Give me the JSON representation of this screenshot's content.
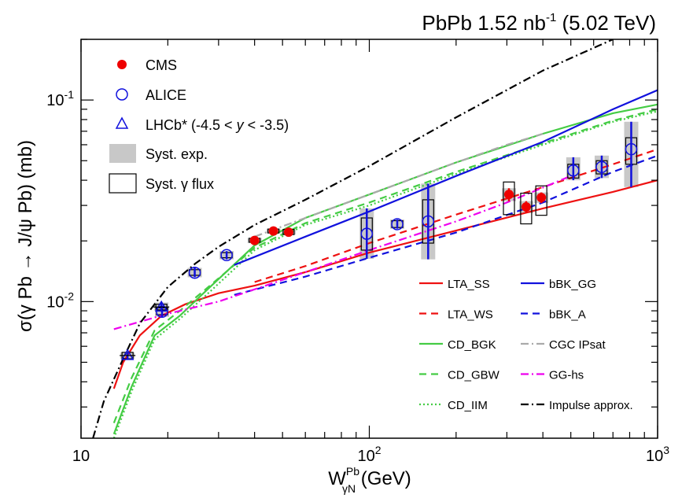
{
  "chart_data": {
    "type": "scatter",
    "title": "PbPb 1.52 nb",
    "title_sup": "-1",
    "title_suffix": " (5.02 TeV)",
    "xlabel_main": "W",
    "xlabel_sup": "Pb",
    "xlabel_sub": "γN",
    "xlabel_unit": " (GeV)",
    "ylabel": "σ(γ Pb → J/ψ Pb) (mb)",
    "x_scale": "log",
    "y_scale": "log",
    "xlim": [
      10,
      1000
    ],
    "ylim": [
      0.0021,
      0.2
    ],
    "x_ticks": [
      {
        "value": 10,
        "label": "10",
        "sup": ""
      },
      {
        "value": 100,
        "label": "10",
        "sup": "2"
      },
      {
        "value": 1000,
        "label": "10",
        "sup": "3"
      }
    ],
    "y_ticks": [
      {
        "value": 0.01,
        "label": "10",
        "sup": "-2"
      },
      {
        "value": 0.1,
        "label": "10",
        "sup": "-1"
      }
    ],
    "data_legend": {
      "cms": "CMS",
      "alice": "ALICE",
      "lhcb_prefix": "LHCb* (-4.5 < ",
      "lhcb_var": "y",
      "lhcb_suffix": " < -3.5)",
      "syst_exp": "Syst. exp.",
      "syst_flux": "Syst. γ flux"
    },
    "data_series": [
      {
        "name": "CMS",
        "marker": "filled-circle",
        "color": "#ee0000",
        "points": [
          {
            "x": 40,
            "y": 0.0201,
            "lo": 0.0195,
            "hi": 0.0207,
            "flux_lo": 0.0197,
            "flux_hi": 0.0206
          },
          {
            "x": 46.5,
            "y": 0.0224,
            "lo": 0.0218,
            "hi": 0.023,
            "flux_lo": 0.0219,
            "flux_hi": 0.0229
          },
          {
            "x": 52.5,
            "y": 0.0221,
            "lo": 0.0215,
            "hi": 0.0227,
            "flux_lo": 0.0215,
            "flux_hi": 0.0228
          },
          {
            "x": 305,
            "y": 0.034,
            "lo": 0.0315,
            "hi": 0.0365,
            "flux_lo": 0.027,
            "flux_hi": 0.0392
          },
          {
            "x": 350,
            "y": 0.0295,
            "lo": 0.0275,
            "hi": 0.0315,
            "flux_lo": 0.0243,
            "flux_hi": 0.0345
          },
          {
            "x": 395,
            "y": 0.0328,
            "lo": 0.0308,
            "hi": 0.0348,
            "flux_lo": 0.0268,
            "flux_hi": 0.0375
          }
        ]
      },
      {
        "name": "ALICE",
        "marker": "open-circle",
        "color": "#1010dd",
        "points": [
          {
            "x": 19.1,
            "y": 0.0089,
            "lo": 0.0084,
            "hi": 0.0095,
            "flux_lo": 0.0086,
            "flux_hi": 0.0093
          },
          {
            "x": 24.8,
            "y": 0.0139,
            "lo": 0.0132,
            "hi": 0.0147,
            "flux_lo": 0.0135,
            "flux_hi": 0.0144
          },
          {
            "x": 32,
            "y": 0.017,
            "lo": 0.0162,
            "hi": 0.0178,
            "flux_lo": 0.0165,
            "flux_hi": 0.0175
          },
          {
            "x": 98,
            "y": 0.0217,
            "lo": 0.0163,
            "hi": 0.029,
            "flux_lo": 0.018,
            "flux_hi": 0.026
          },
          {
            "x": 125,
            "y": 0.0242,
            "lo": 0.023,
            "hi": 0.0255,
            "flux_lo": 0.0233,
            "flux_hi": 0.0252
          },
          {
            "x": 160,
            "y": 0.025,
            "lo": 0.0162,
            "hi": 0.0385,
            "flux_lo": 0.0195,
            "flux_hi": 0.032
          },
          {
            "x": 510,
            "y": 0.0447,
            "lo": 0.04,
            "hi": 0.052,
            "flux_lo": 0.041,
            "flux_hi": 0.048
          },
          {
            "x": 640,
            "y": 0.0465,
            "lo": 0.041,
            "hi": 0.053,
            "flux_lo": 0.043,
            "flux_hi": 0.05
          },
          {
            "x": 810,
            "y": 0.057,
            "lo": 0.037,
            "hi": 0.078,
            "flux_lo": 0.048,
            "flux_hi": 0.065
          }
        ]
      },
      {
        "name": "LHCb*",
        "marker": "open-triangle",
        "color": "#1010dd",
        "points": [
          {
            "x": 14.5,
            "y": 0.0054,
            "lo": 0.0052,
            "hi": 0.0056,
            "flux_lo": 0.0052,
            "flux_hi": 0.0056
          },
          {
            "x": 19,
            "y": 0.0094,
            "lo": 0.009,
            "hi": 0.0099,
            "flux_lo": 0.0091,
            "flux_hi": 0.0097
          }
        ]
      }
    ],
    "model_series": [
      {
        "name": "LTA_SS",
        "color": "#ee1111",
        "style": "solid",
        "points": [
          [
            13,
            0.0037
          ],
          [
            14,
            0.005
          ],
          [
            16,
            0.0068
          ],
          [
            19,
            0.0085
          ],
          [
            23,
            0.0097
          ],
          [
            30,
            0.011
          ],
          [
            40,
            0.012
          ],
          [
            60,
            0.014
          ],
          [
            100,
            0.0175
          ],
          [
            200,
            0.0225
          ],
          [
            400,
            0.029
          ],
          [
            700,
            0.035
          ],
          [
            1000,
            0.04
          ]
        ]
      },
      {
        "name": "LTA_WS",
        "color": "#ee1111",
        "style": "dashed",
        "points": [
          [
            40,
            0.0125
          ],
          [
            60,
            0.015
          ],
          [
            100,
            0.0195
          ],
          [
            200,
            0.027
          ],
          [
            400,
            0.037
          ],
          [
            700,
            0.048
          ],
          [
            1000,
            0.057
          ]
        ]
      },
      {
        "name": "CD_BGK",
        "color": "#44cc44",
        "style": "solid",
        "points": [
          [
            13,
            0.0022
          ],
          [
            15,
            0.0038
          ],
          [
            18,
            0.0068
          ],
          [
            22,
            0.0085
          ],
          [
            28,
            0.0118
          ],
          [
            40,
            0.019
          ],
          [
            60,
            0.026
          ],
          [
            100,
            0.034
          ],
          [
            200,
            0.049
          ],
          [
            400,
            0.068
          ],
          [
            700,
            0.086
          ],
          [
            1000,
            0.095
          ]
        ]
      },
      {
        "name": "CD_GBW",
        "color": "#44cc44",
        "style": "dashed",
        "points": [
          [
            13,
            0.0025
          ],
          [
            15,
            0.0042
          ],
          [
            18,
            0.0072
          ],
          [
            22,
            0.009
          ],
          [
            28,
            0.012
          ],
          [
            40,
            0.0185
          ],
          [
            60,
            0.0245
          ],
          [
            100,
            0.031
          ],
          [
            200,
            0.044
          ],
          [
            400,
            0.061
          ],
          [
            700,
            0.079
          ],
          [
            1000,
            0.09
          ]
        ]
      },
      {
        "name": "CD_IIM",
        "color": "#44cc44",
        "style": "dotted",
        "points": [
          [
            13,
            0.0021
          ],
          [
            15,
            0.0036
          ],
          [
            18,
            0.0065
          ],
          [
            22,
            0.0082
          ],
          [
            28,
            0.0112
          ],
          [
            40,
            0.018
          ],
          [
            60,
            0.024
          ],
          [
            100,
            0.03
          ],
          [
            200,
            0.043
          ],
          [
            400,
            0.06
          ],
          [
            700,
            0.078
          ],
          [
            1000,
            0.088
          ]
        ]
      },
      {
        "name": "bBK_GG",
        "color": "#1111dd",
        "style": "solid",
        "points": [
          [
            34,
            0.0152
          ],
          [
            60,
            0.021
          ],
          [
            100,
            0.028
          ],
          [
            200,
            0.042
          ],
          [
            400,
            0.062
          ],
          [
            700,
            0.09
          ],
          [
            1000,
            0.112
          ]
        ]
      },
      {
        "name": "bBK_A",
        "color": "#1111dd",
        "style": "dashed",
        "points": [
          [
            34,
            0.0108
          ],
          [
            60,
            0.0133
          ],
          [
            100,
            0.0165
          ],
          [
            200,
            0.022
          ],
          [
            400,
            0.031
          ],
          [
            700,
            0.044
          ],
          [
            1000,
            0.053
          ]
        ]
      },
      {
        "name": "CGC IPsat",
        "color": "#aaaaaa",
        "style": "dashdot",
        "points": [
          [
            40,
            0.021
          ],
          [
            60,
            0.026
          ],
          [
            100,
            0.034
          ],
          [
            200,
            0.049
          ],
          [
            300,
            0.06
          ],
          [
            400,
            0.068
          ]
        ]
      },
      {
        "name": "GG-hs",
        "color": "#ee00ee",
        "style": "dashdot",
        "points": [
          [
            13,
            0.0073
          ],
          [
            20,
            0.0087
          ],
          [
            30,
            0.01
          ],
          [
            60,
            0.014
          ],
          [
            100,
            0.018
          ],
          [
            200,
            0.025
          ],
          [
            300,
            0.031
          ],
          [
            500,
            0.042
          ]
        ]
      },
      {
        "name": "Impulse approx.",
        "color": "#000000",
        "style": "dashdot",
        "points": [
          [
            11,
            0.0021
          ],
          [
            12,
            0.0032
          ],
          [
            14,
            0.0052
          ],
          [
            16,
            0.0078
          ],
          [
            20,
            0.0118
          ],
          [
            25,
            0.0155
          ],
          [
            30,
            0.0187
          ],
          [
            40,
            0.024
          ],
          [
            60,
            0.032
          ],
          [
            100,
            0.047
          ],
          [
            200,
            0.082
          ],
          [
            400,
            0.14
          ],
          [
            700,
            0.2
          ]
        ]
      }
    ],
    "model_legend_order": [
      "LTA_SS",
      "bBK_GG",
      "LTA_WS",
      "bBK_A",
      "CD_BGK",
      "CGC IPsat",
      "CD_GBW",
      "GG-hs",
      "CD_IIM",
      "Impulse approx."
    ]
  }
}
